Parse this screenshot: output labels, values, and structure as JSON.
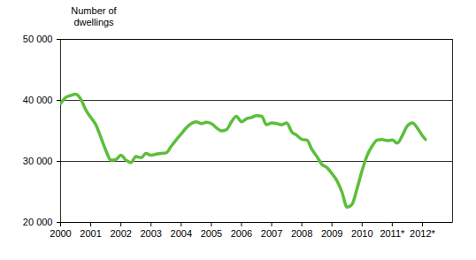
{
  "chart_data": {
    "type": "line",
    "y_label": "Number of dwellings",
    "x": [
      2000,
      2000.17,
      2000.33,
      2000.5,
      2000.67,
      2000.83,
      2001,
      2001.17,
      2001.33,
      2001.5,
      2001.67,
      2001.83,
      2002,
      2002.17,
      2002.33,
      2002.5,
      2002.67,
      2002.83,
      2003,
      2003.17,
      2003.33,
      2003.5,
      2003.67,
      2003.83,
      2004,
      2004.17,
      2004.33,
      2004.5,
      2004.67,
      2004.83,
      2005,
      2005.17,
      2005.33,
      2005.5,
      2005.67,
      2005.83,
      2006,
      2006.17,
      2006.33,
      2006.5,
      2006.67,
      2006.83,
      2007,
      2007.17,
      2007.33,
      2007.5,
      2007.67,
      2007.83,
      2008,
      2008.17,
      2008.33,
      2008.5,
      2008.67,
      2008.83,
      2009,
      2009.17,
      2009.33,
      2009.5,
      2009.67,
      2009.83,
      2010,
      2010.17,
      2010.33,
      2010.5,
      2010.67,
      2010.83,
      2011,
      2011.17,
      2011.33,
      2011.5,
      2011.67,
      2011.83,
      2012,
      2012.1
    ],
    "values": [
      39500,
      40500,
      40800,
      41000,
      40200,
      38500,
      37200,
      36000,
      34000,
      31800,
      30200,
      30300,
      31000,
      30200,
      29800,
      30800,
      30600,
      31300,
      31000,
      31200,
      31300,
      31400,
      32500,
      33500,
      34500,
      35500,
      36200,
      36500,
      36200,
      36400,
      36200,
      35500,
      35000,
      35200,
      36500,
      37400,
      36500,
      37000,
      37200,
      37500,
      37400,
      36000,
      36300,
      36200,
      36000,
      36300,
      34800,
      34300,
      33600,
      33500,
      32000,
      30800,
      29500,
      29000,
      28000,
      26800,
      25000,
      22500,
      23000,
      25500,
      28500,
      31000,
      32500,
      33500,
      33600,
      33400,
      33500,
      33000,
      34200,
      35800,
      36300,
      35500,
      34200,
      33600
    ],
    "color": "#5cbf3a",
    "xlim": [
      2000,
      2013
    ],
    "xticks": [
      2000,
      2001,
      2002,
      2003,
      2004,
      2005,
      2006,
      2007,
      2008,
      2009,
      2010,
      {
        "value": 2011,
        "label": "2011*"
      },
      {
        "value": 2012,
        "label": "2012*"
      }
    ],
    "ylim": [
      20000,
      50000
    ],
    "yticks": [
      {
        "value": 20000,
        "label": "20 000"
      },
      {
        "value": 30000,
        "label": "30 000"
      },
      {
        "value": 40000,
        "label": "40 000"
      },
      {
        "value": 50000,
        "label": "50 000"
      }
    ],
    "grid": true
  }
}
